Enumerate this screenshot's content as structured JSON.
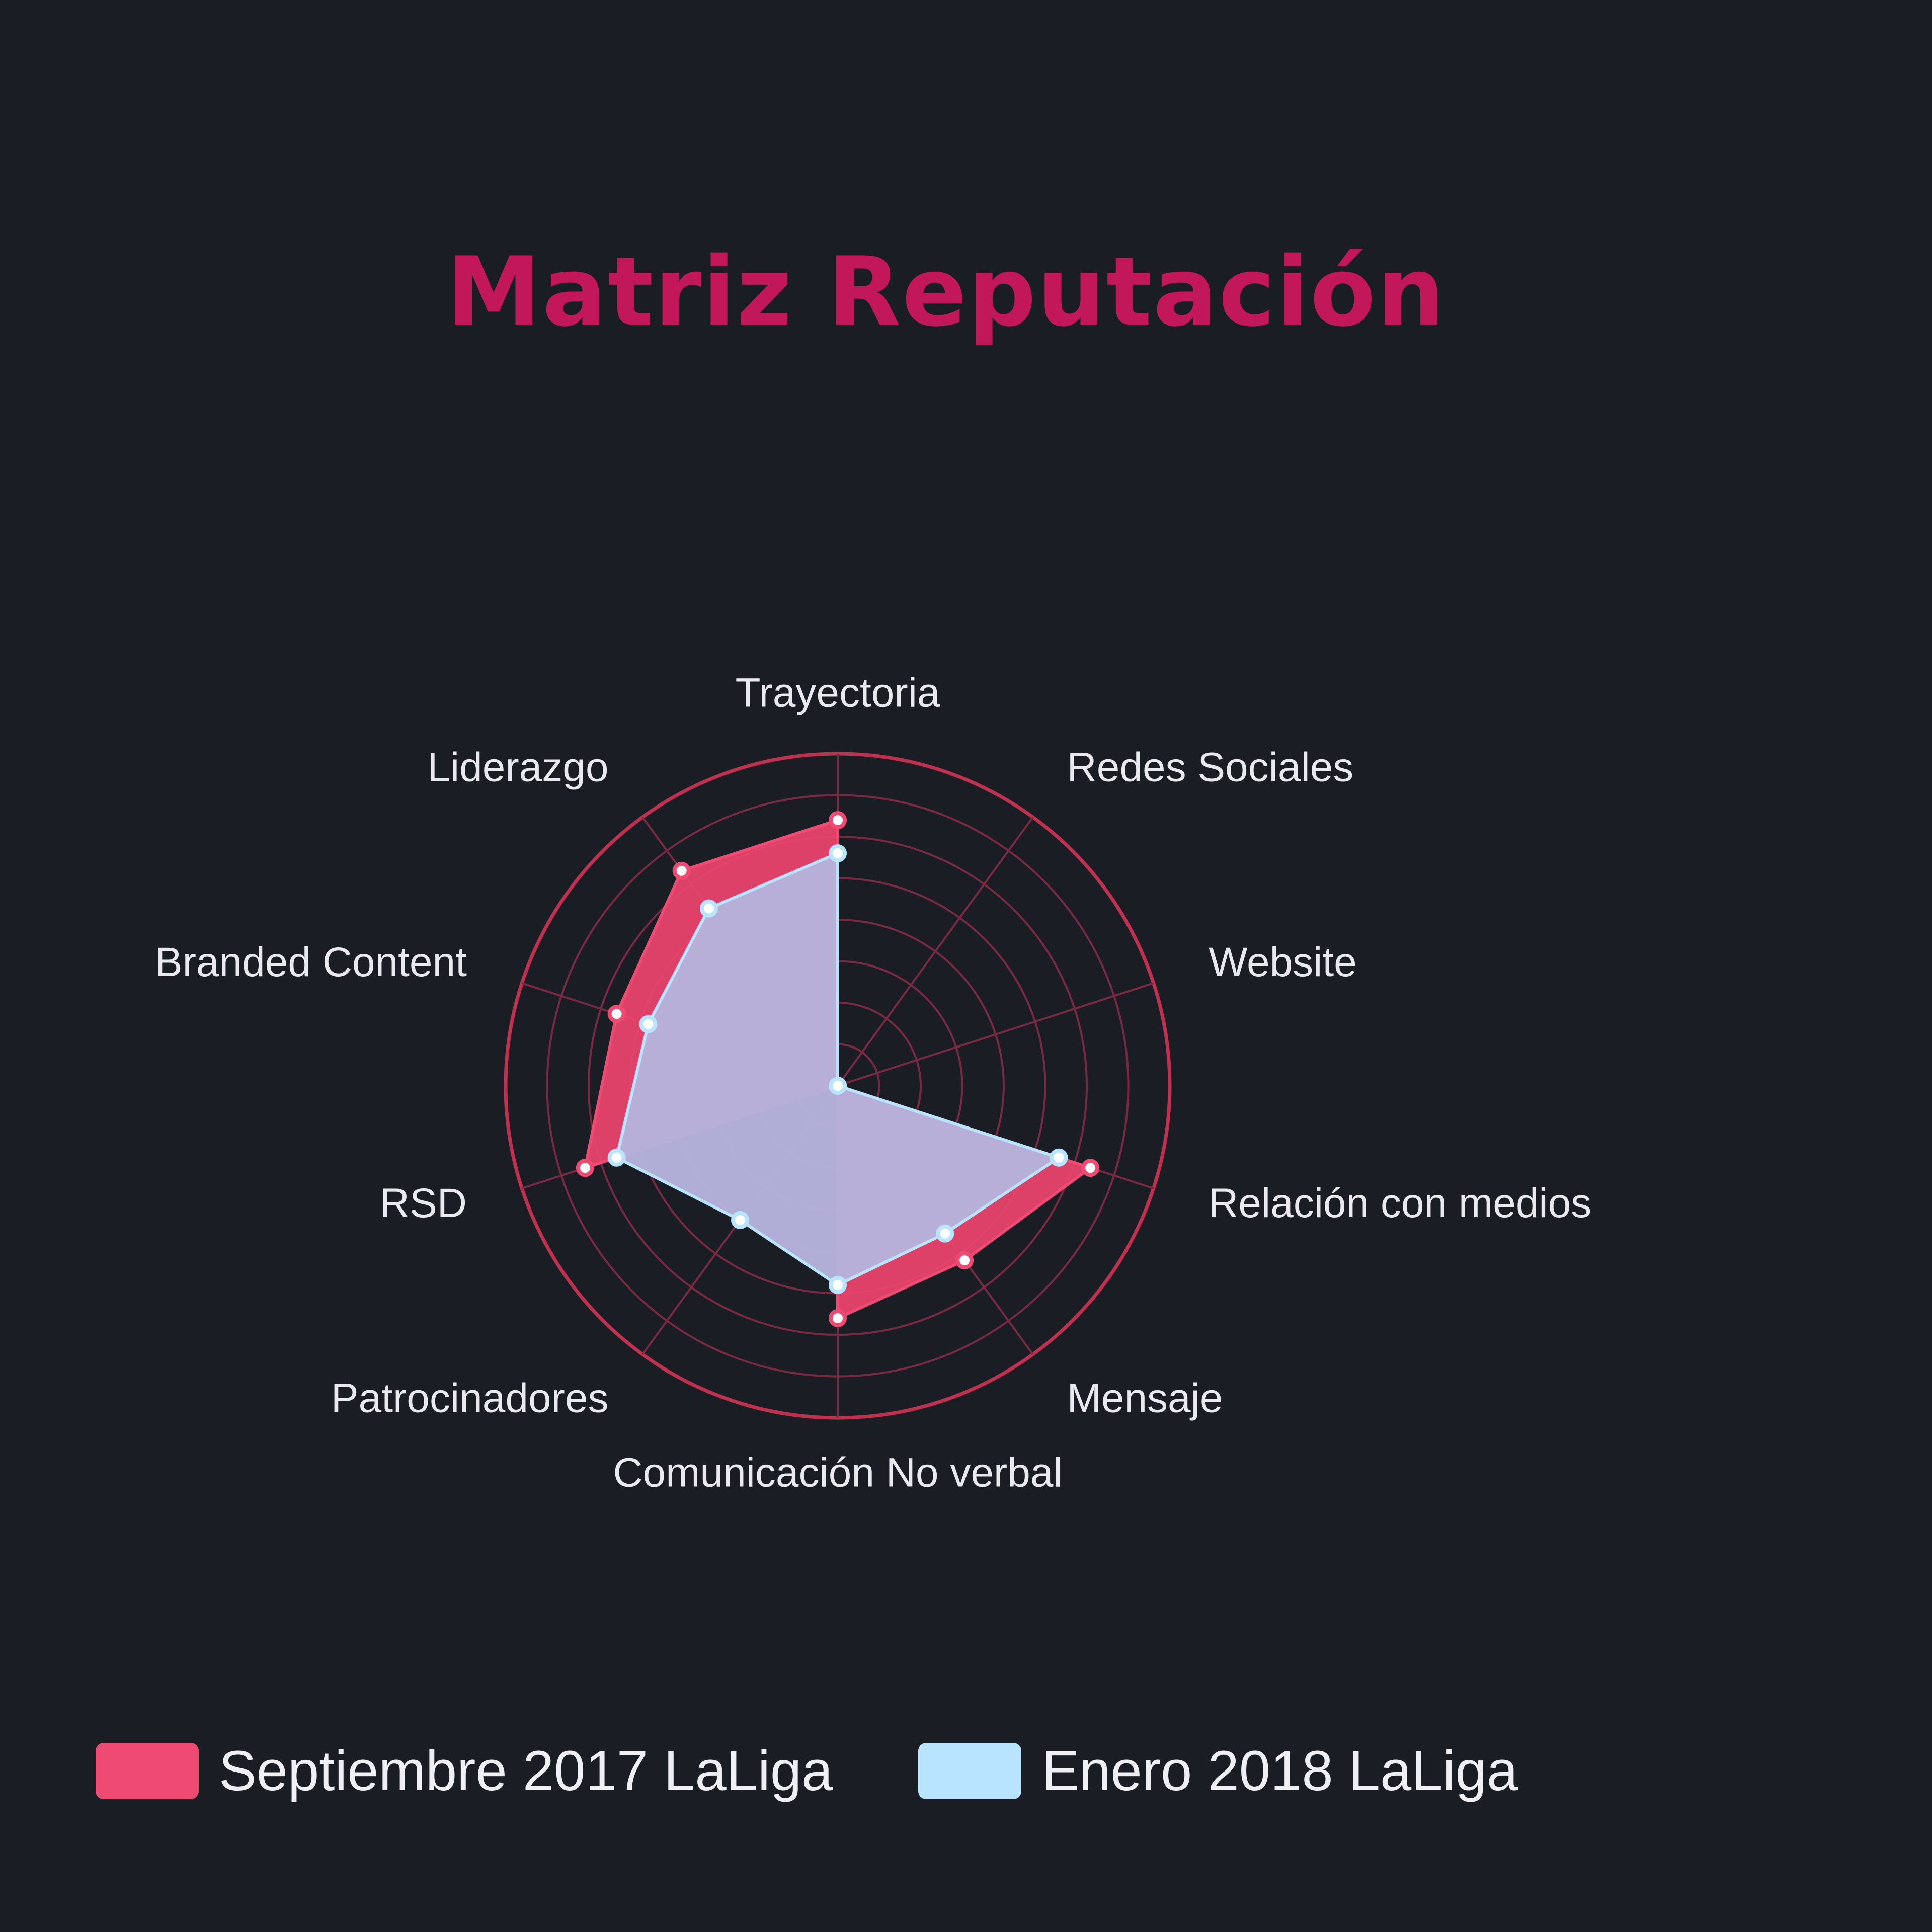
{
  "chart_data": {
    "type": "radar",
    "title": "Matriz Reputación",
    "categories": [
      "Trayectoria",
      "Redes Sociales",
      "Website",
      "Relación con medios",
      "Mensaje",
      "Comunicación No verbal",
      "Patrocinadores",
      "RSD",
      "Branded Content",
      "Liderazgo"
    ],
    "rmax": 10,
    "rings": 8,
    "series": [
      {
        "name": "Septiembre 2017 LaLiga",
        "values": [
          8,
          0,
          0,
          8,
          6.5,
          7,
          0,
          8,
          7,
          8
        ],
        "color": "#ef4a72",
        "fill": "#e9436d"
      },
      {
        "name": "Enero 2018 LaLiga",
        "values": [
          7,
          0,
          0,
          7,
          5.5,
          6,
          5,
          7,
          6,
          6.6
        ],
        "color": "#b8e4ff",
        "fill": "#b6b3dc"
      }
    ],
    "grid_color": "#7a2a40",
    "outer_ring_color": "#c0304f"
  }
}
